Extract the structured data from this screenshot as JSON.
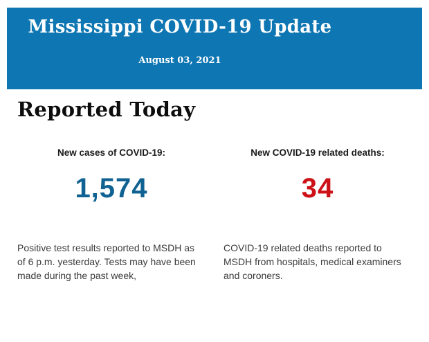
{
  "page": {
    "background_color": "#FFFFFF"
  },
  "header": {
    "title": "Mississippi COVID-19 Update",
    "date": "August 03, 2021",
    "background_color": "#0E76B2",
    "text_color": "#FFFFFF"
  },
  "main": {
    "heading": "Reported Today",
    "stats": [
      {
        "id": "new-cases",
        "label": "New cases of COVID-19:",
        "value": "1,574",
        "value_color": "#0F6292",
        "description": "Positive test results reported to MSDH as\nof 6 p.m. yesterday. Tests may have been\nmade during the past week,"
      },
      {
        "id": "new-deaths",
        "label": "New COVID-19 related deaths:",
        "value": "34",
        "value_color": "#CC1117",
        "description": "COVID-19 related deaths reported to\nMSDH from hospitals, medical examiners\nand coroners."
      }
    ]
  }
}
